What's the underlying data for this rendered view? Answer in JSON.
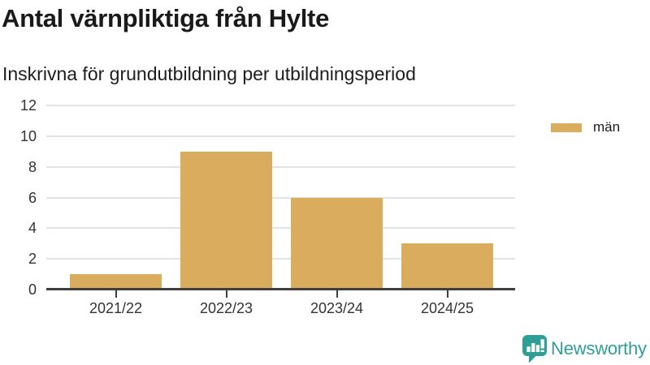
{
  "header": {
    "title": "Antal värnpliktiga från Hylte",
    "subtitle": "Inskrivna för grundutbildning per utbildningsperiod"
  },
  "chart_data": {
    "type": "bar",
    "categories": [
      "2021/22",
      "2022/23",
      "2023/24",
      "2024/25"
    ],
    "series": [
      {
        "name": "män",
        "values": [
          1,
          9,
          6,
          3
        ],
        "color": "#d9ac5e"
      }
    ],
    "title": "Antal värnpliktiga från Hylte",
    "subtitle": "Inskrivna för grundutbildning per utbildningsperiod",
    "xlabel": "",
    "ylabel": "",
    "ylim": [
      0,
      12
    ],
    "yticks": [
      0,
      2,
      4,
      6,
      8,
      10,
      12
    ],
    "grid": true,
    "legend_position": "top-right"
  },
  "legend": {
    "items": [
      {
        "label": "män",
        "color": "#d9ac5e"
      }
    ]
  },
  "branding": {
    "name": "Newsworthy",
    "icon": "bar-chart-speech-bubble-icon",
    "color": "#2f9e96"
  },
  "colors": {
    "bar": "#d9ac5e",
    "gridline": "#e3e3e3",
    "axis_line": "#3f3f3f",
    "title_text": "#1a1a1a",
    "axis_text": "#333333",
    "brand_teal": "#2f9e96"
  }
}
